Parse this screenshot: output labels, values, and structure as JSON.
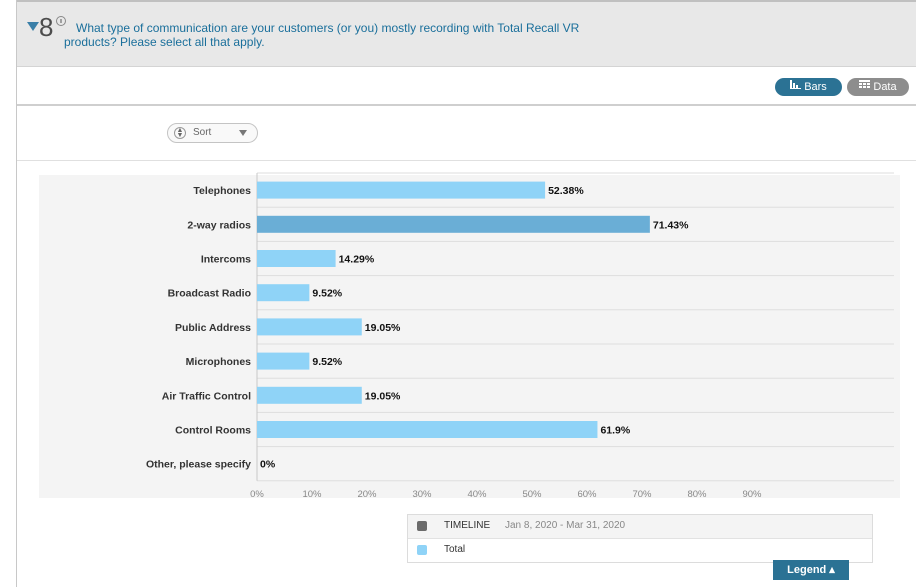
{
  "question": {
    "number": "8",
    "text": "What type of communication are your customers (or you) mostly recording with Total Recall VR products? Please select all that apply."
  },
  "toolbar": {
    "bars_label": "Bars",
    "data_label": "Data",
    "bars_icon": "bar-chart-icon",
    "data_icon": "table-icon"
  },
  "sort": {
    "label": "Sort"
  },
  "colors": {
    "bar": "#8fd3f7",
    "bar_highlight": "#6aaed6",
    "timeline_swatch": "#6b6b6b",
    "total_swatch": "#8fd3f7",
    "accent": "#2b7294"
  },
  "chart_data": {
    "type": "bar",
    "orientation": "horizontal",
    "categories": [
      "Telephones",
      "2-way radios",
      "Intercoms",
      "Broadcast Radio",
      "Public Address",
      "Microphones",
      "Air Traffic Control",
      "Control Rooms",
      "Other, please specify"
    ],
    "values": [
      52.38,
      71.43,
      14.29,
      9.52,
      19.05,
      9.52,
      19.05,
      61.9,
      0
    ],
    "value_labels": [
      "52.38%",
      "71.43%",
      "14.29%",
      "9.52%",
      "19.05%",
      "9.52%",
      "19.05%",
      "61.9%",
      "0%"
    ],
    "highlighted_index": 1,
    "x_ticks": [
      "0%",
      "10%",
      "20%",
      "30%",
      "40%",
      "50%",
      "60%",
      "70%",
      "80%",
      "90%"
    ],
    "xlim": [
      0,
      90
    ],
    "grid": true,
    "series": [
      {
        "name": "Total",
        "values": [
          52.38,
          71.43,
          14.29,
          9.52,
          19.05,
          9.52,
          19.05,
          61.9,
          0
        ]
      }
    ]
  },
  "legend": {
    "timeline_label": "TIMELINE",
    "timeline_range": "Jan 8, 2020 - Mar 31, 2020",
    "total_label": "Total",
    "button_label": "Legend ▴"
  }
}
